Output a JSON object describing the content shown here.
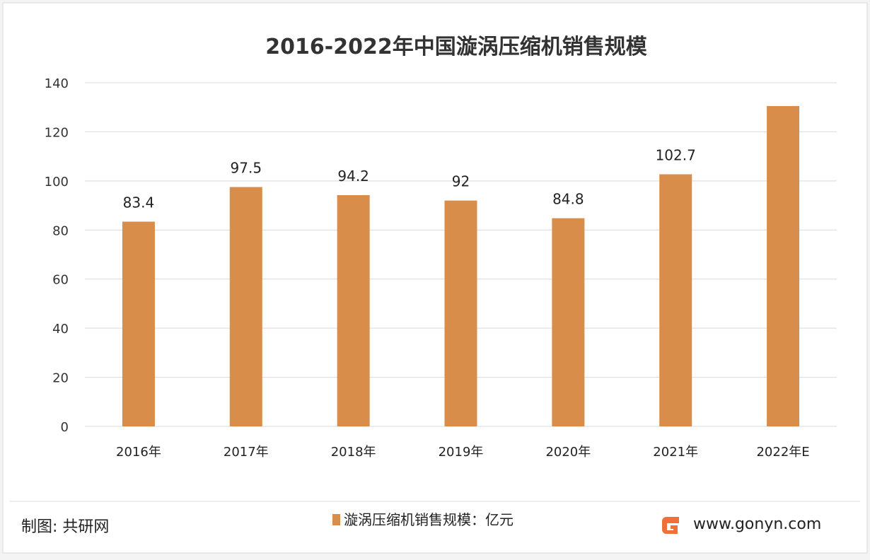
{
  "chart_data": {
    "type": "bar",
    "title": "2016-2022年中国漩涡压缩机销售规模",
    "categories": [
      "2016年",
      "2017年",
      "2018年",
      "2019年",
      "2020年",
      "2021年",
      "2022年E"
    ],
    "series": [
      {
        "name": "漩涡压缩机销售规模：亿元",
        "values": [
          83.4,
          97.5,
          94.2,
          92,
          84.8,
          102.7,
          130.5
        ]
      }
    ],
    "data_labels": [
      "83.4",
      "97.5",
      "94.2",
      "92",
      "84.8",
      "102.7",
      ""
    ],
    "ylim": [
      0,
      140
    ],
    "yticks": [
      "0",
      "20",
      "40",
      "60",
      "80",
      "100",
      "120",
      "140"
    ],
    "grid": true,
    "legend_position": "bottom",
    "bar_color": "#d88e4a"
  },
  "footer": {
    "source": "制图: 共研网",
    "website": "www.gonyn.com"
  },
  "logo_color": "#f0703a"
}
